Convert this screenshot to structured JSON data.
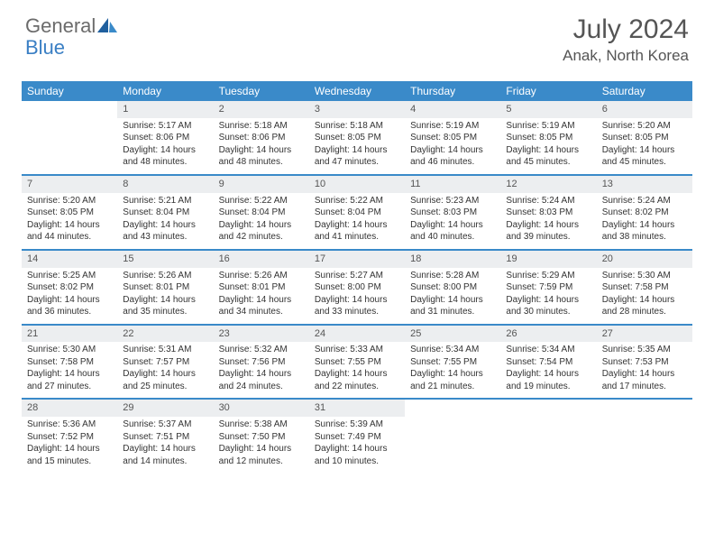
{
  "brand": {
    "part1": "General",
    "part2": "Blue"
  },
  "title": "July 2024",
  "location": "Anak, North Korea",
  "colors": {
    "header_bg": "#3a8ac9",
    "daynum_bg": "#eceef0",
    "brand_gray": "#6b6b6b",
    "brand_blue": "#3a7fc4",
    "text": "#333333",
    "title_color": "#555555"
  },
  "day_names": [
    "Sunday",
    "Monday",
    "Tuesday",
    "Wednesday",
    "Thursday",
    "Friday",
    "Saturday"
  ],
  "weeks": [
    [
      {
        "day": "",
        "sunrise": "",
        "sunset": "",
        "daylight": ""
      },
      {
        "day": "1",
        "sunrise": "Sunrise: 5:17 AM",
        "sunset": "Sunset: 8:06 PM",
        "daylight": "Daylight: 14 hours and 48 minutes."
      },
      {
        "day": "2",
        "sunrise": "Sunrise: 5:18 AM",
        "sunset": "Sunset: 8:06 PM",
        "daylight": "Daylight: 14 hours and 48 minutes."
      },
      {
        "day": "3",
        "sunrise": "Sunrise: 5:18 AM",
        "sunset": "Sunset: 8:05 PM",
        "daylight": "Daylight: 14 hours and 47 minutes."
      },
      {
        "day": "4",
        "sunrise": "Sunrise: 5:19 AM",
        "sunset": "Sunset: 8:05 PM",
        "daylight": "Daylight: 14 hours and 46 minutes."
      },
      {
        "day": "5",
        "sunrise": "Sunrise: 5:19 AM",
        "sunset": "Sunset: 8:05 PM",
        "daylight": "Daylight: 14 hours and 45 minutes."
      },
      {
        "day": "6",
        "sunrise": "Sunrise: 5:20 AM",
        "sunset": "Sunset: 8:05 PM",
        "daylight": "Daylight: 14 hours and 45 minutes."
      }
    ],
    [
      {
        "day": "7",
        "sunrise": "Sunrise: 5:20 AM",
        "sunset": "Sunset: 8:05 PM",
        "daylight": "Daylight: 14 hours and 44 minutes."
      },
      {
        "day": "8",
        "sunrise": "Sunrise: 5:21 AM",
        "sunset": "Sunset: 8:04 PM",
        "daylight": "Daylight: 14 hours and 43 minutes."
      },
      {
        "day": "9",
        "sunrise": "Sunrise: 5:22 AM",
        "sunset": "Sunset: 8:04 PM",
        "daylight": "Daylight: 14 hours and 42 minutes."
      },
      {
        "day": "10",
        "sunrise": "Sunrise: 5:22 AM",
        "sunset": "Sunset: 8:04 PM",
        "daylight": "Daylight: 14 hours and 41 minutes."
      },
      {
        "day": "11",
        "sunrise": "Sunrise: 5:23 AM",
        "sunset": "Sunset: 8:03 PM",
        "daylight": "Daylight: 14 hours and 40 minutes."
      },
      {
        "day": "12",
        "sunrise": "Sunrise: 5:24 AM",
        "sunset": "Sunset: 8:03 PM",
        "daylight": "Daylight: 14 hours and 39 minutes."
      },
      {
        "day": "13",
        "sunrise": "Sunrise: 5:24 AM",
        "sunset": "Sunset: 8:02 PM",
        "daylight": "Daylight: 14 hours and 38 minutes."
      }
    ],
    [
      {
        "day": "14",
        "sunrise": "Sunrise: 5:25 AM",
        "sunset": "Sunset: 8:02 PM",
        "daylight": "Daylight: 14 hours and 36 minutes."
      },
      {
        "day": "15",
        "sunrise": "Sunrise: 5:26 AM",
        "sunset": "Sunset: 8:01 PM",
        "daylight": "Daylight: 14 hours and 35 minutes."
      },
      {
        "day": "16",
        "sunrise": "Sunrise: 5:26 AM",
        "sunset": "Sunset: 8:01 PM",
        "daylight": "Daylight: 14 hours and 34 minutes."
      },
      {
        "day": "17",
        "sunrise": "Sunrise: 5:27 AM",
        "sunset": "Sunset: 8:00 PM",
        "daylight": "Daylight: 14 hours and 33 minutes."
      },
      {
        "day": "18",
        "sunrise": "Sunrise: 5:28 AM",
        "sunset": "Sunset: 8:00 PM",
        "daylight": "Daylight: 14 hours and 31 minutes."
      },
      {
        "day": "19",
        "sunrise": "Sunrise: 5:29 AM",
        "sunset": "Sunset: 7:59 PM",
        "daylight": "Daylight: 14 hours and 30 minutes."
      },
      {
        "day": "20",
        "sunrise": "Sunrise: 5:30 AM",
        "sunset": "Sunset: 7:58 PM",
        "daylight": "Daylight: 14 hours and 28 minutes."
      }
    ],
    [
      {
        "day": "21",
        "sunrise": "Sunrise: 5:30 AM",
        "sunset": "Sunset: 7:58 PM",
        "daylight": "Daylight: 14 hours and 27 minutes."
      },
      {
        "day": "22",
        "sunrise": "Sunrise: 5:31 AM",
        "sunset": "Sunset: 7:57 PM",
        "daylight": "Daylight: 14 hours and 25 minutes."
      },
      {
        "day": "23",
        "sunrise": "Sunrise: 5:32 AM",
        "sunset": "Sunset: 7:56 PM",
        "daylight": "Daylight: 14 hours and 24 minutes."
      },
      {
        "day": "24",
        "sunrise": "Sunrise: 5:33 AM",
        "sunset": "Sunset: 7:55 PM",
        "daylight": "Daylight: 14 hours and 22 minutes."
      },
      {
        "day": "25",
        "sunrise": "Sunrise: 5:34 AM",
        "sunset": "Sunset: 7:55 PM",
        "daylight": "Daylight: 14 hours and 21 minutes."
      },
      {
        "day": "26",
        "sunrise": "Sunrise: 5:34 AM",
        "sunset": "Sunset: 7:54 PM",
        "daylight": "Daylight: 14 hours and 19 minutes."
      },
      {
        "day": "27",
        "sunrise": "Sunrise: 5:35 AM",
        "sunset": "Sunset: 7:53 PM",
        "daylight": "Daylight: 14 hours and 17 minutes."
      }
    ],
    [
      {
        "day": "28",
        "sunrise": "Sunrise: 5:36 AM",
        "sunset": "Sunset: 7:52 PM",
        "daylight": "Daylight: 14 hours and 15 minutes."
      },
      {
        "day": "29",
        "sunrise": "Sunrise: 5:37 AM",
        "sunset": "Sunset: 7:51 PM",
        "daylight": "Daylight: 14 hours and 14 minutes."
      },
      {
        "day": "30",
        "sunrise": "Sunrise: 5:38 AM",
        "sunset": "Sunset: 7:50 PM",
        "daylight": "Daylight: 14 hours and 12 minutes."
      },
      {
        "day": "31",
        "sunrise": "Sunrise: 5:39 AM",
        "sunset": "Sunset: 7:49 PM",
        "daylight": "Daylight: 14 hours and 10 minutes."
      },
      {
        "day": "",
        "sunrise": "",
        "sunset": "",
        "daylight": ""
      },
      {
        "day": "",
        "sunrise": "",
        "sunset": "",
        "daylight": ""
      },
      {
        "day": "",
        "sunrise": "",
        "sunset": "",
        "daylight": ""
      }
    ]
  ]
}
